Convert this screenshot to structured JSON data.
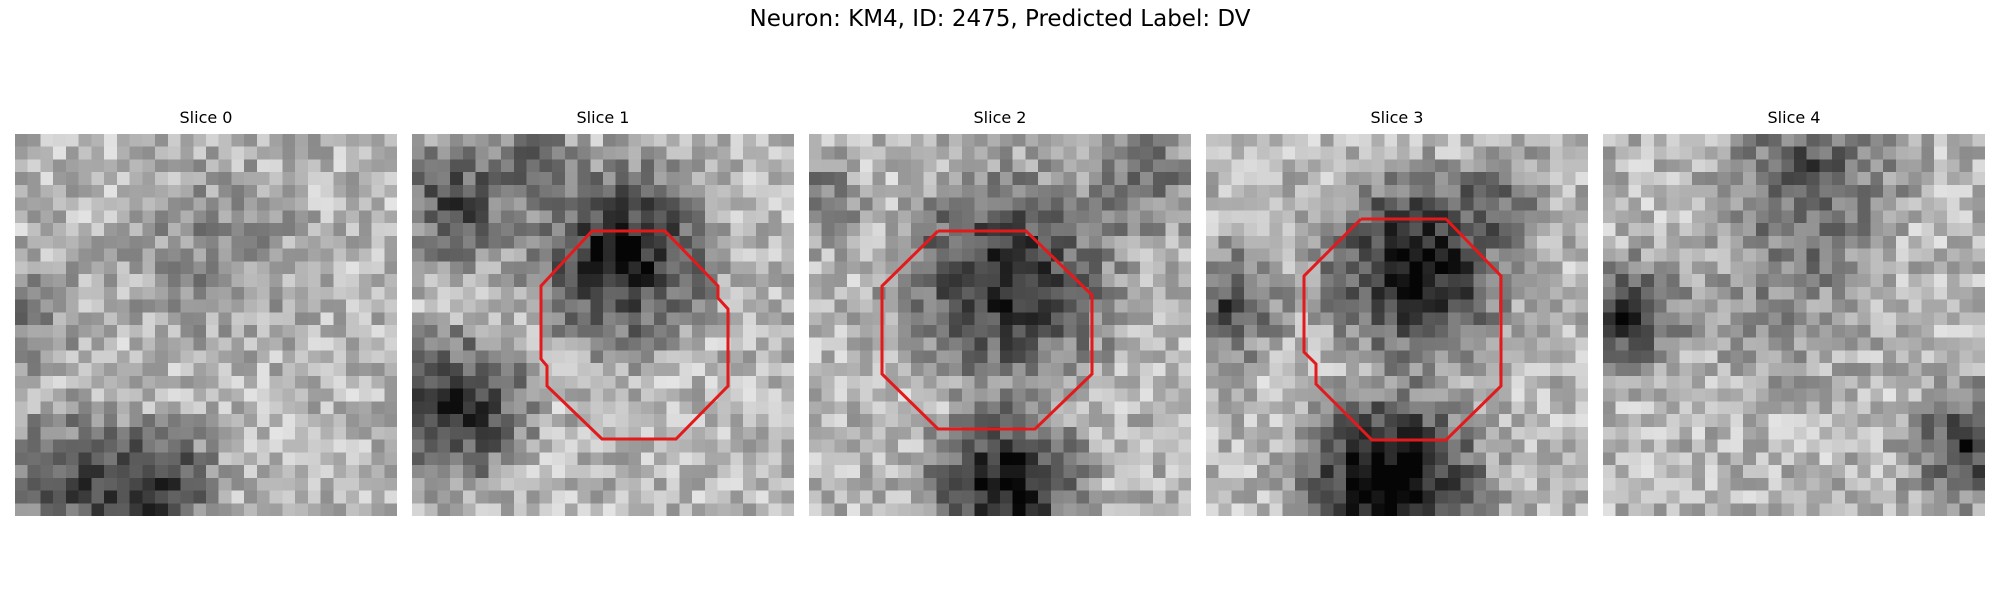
{
  "figure": {
    "title": "Neuron: KM4, ID: 2475, Predicted Label: DV"
  },
  "slices": [
    {
      "label": "Slice 0",
      "has_roi": false
    },
    {
      "label": "Slice 1",
      "has_roi": true
    },
    {
      "label": "Slice 2",
      "has_roi": true
    },
    {
      "label": "Slice 3",
      "has_roi": true
    },
    {
      "label": "Slice 4",
      "has_roi": false
    }
  ],
  "colors": {
    "roi_outline": "#e31a1c",
    "background": "#ffffff"
  }
}
